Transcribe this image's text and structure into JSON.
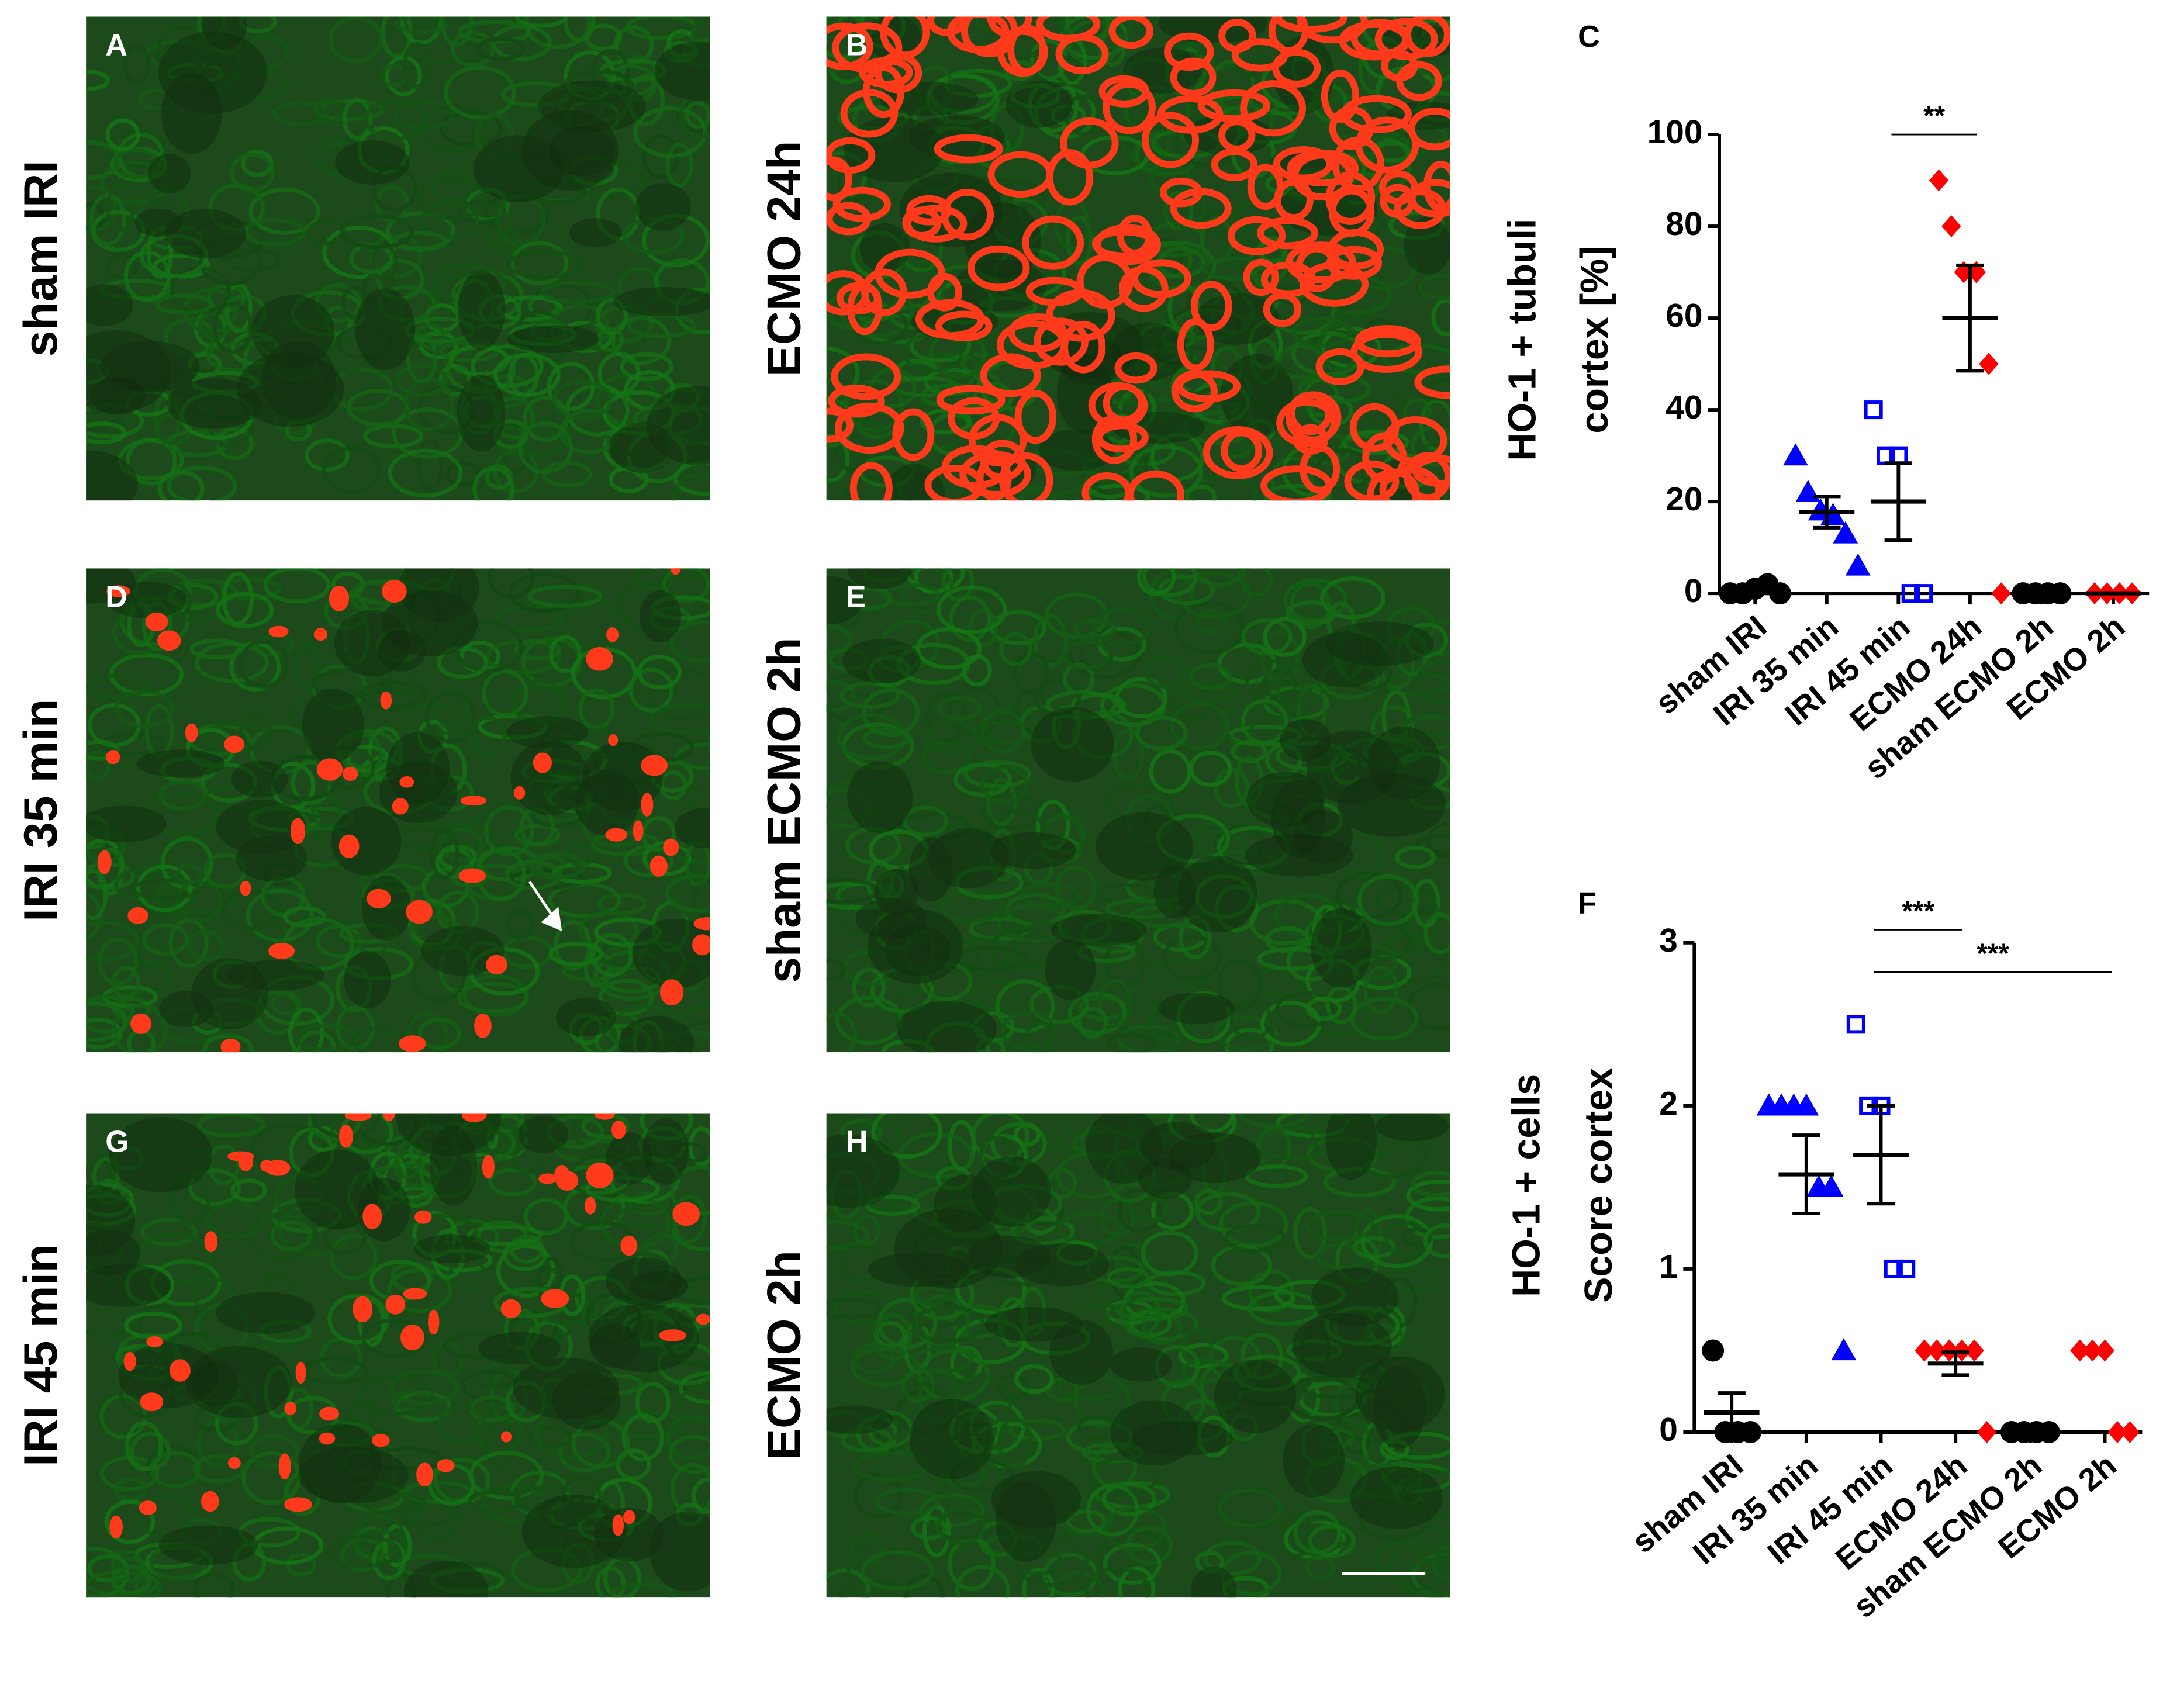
{
  "panels": [
    {
      "letter": "A",
      "label": "sham IRI"
    },
    {
      "letter": "B",
      "label": "ECMO 24h"
    },
    {
      "letter": "D",
      "label": "IRI 35 min"
    },
    {
      "letter": "E",
      "label": "sham ECMO 2h"
    },
    {
      "letter": "G",
      "label": "IRI 45 min"
    },
    {
      "letter": "H",
      "label": "ECMO 2h"
    }
  ],
  "chart_data": [
    {
      "type": "scatter",
      "panel": "C",
      "ylabel": [
        "HO-1 + tubuli",
        "cortex [%]"
      ],
      "categories": [
        "sham IRI",
        "IRI 35 min",
        "IRI 45 min",
        "ECMO 24h",
        "sham ECMO 2h",
        "ECMO 2h"
      ],
      "colors": [
        "#000000",
        "#0000ff",
        "#0000ff",
        "#ff0000",
        "#000000",
        "#ff0000"
      ],
      "markers": [
        "circle",
        "triangle",
        "square-open",
        "diamond",
        "circle",
        "diamond"
      ],
      "points": [
        [
          0,
          0,
          1,
          2,
          0
        ],
        [
          30,
          22,
          18,
          17,
          13,
          6
        ],
        [
          40,
          30,
          30,
          0,
          0
        ],
        [
          90,
          80,
          70,
          70,
          50,
          0
        ],
        [
          0,
          0,
          0,
          0
        ],
        [
          0,
          0,
          0,
          0
        ]
      ],
      "mean": [
        0.6,
        17.7,
        20,
        60,
        0,
        0
      ],
      "error": [
        0.4,
        3.4,
        8.4,
        11.5,
        0,
        0
      ],
      "ylim": [
        0,
        100
      ],
      "yticks": [
        0,
        20,
        40,
        60,
        80,
        100
      ],
      "annotations": [
        {
          "text": "**",
          "between": [
            "IRI 45 min",
            "ECMO 24h"
          ],
          "y": 100
        }
      ]
    },
    {
      "type": "scatter",
      "panel": "F",
      "ylabel": [
        "HO-1 + cells",
        "Score cortex"
      ],
      "categories": [
        "sham IRI",
        "IRI 35 min",
        "IRI 45 min",
        "ECMO 24h",
        "sham ECMO 2h",
        "ECMO 2h"
      ],
      "colors": [
        "#000000",
        "#0000ff",
        "#0000ff",
        "#ff0000",
        "#000000",
        "#ff0000"
      ],
      "markers": [
        "circle",
        "triangle",
        "square-open",
        "diamond",
        "circle",
        "diamond"
      ],
      "points": [
        [
          0.5,
          0,
          0,
          0
        ],
        [
          2,
          2,
          2,
          2,
          1.5,
          1.5,
          0.5
        ],
        [
          2.5,
          2,
          2,
          1,
          1
        ],
        [
          0.5,
          0.5,
          0.5,
          0.5,
          0.5,
          0
        ],
        [
          0,
          0,
          0,
          0
        ],
        [
          0.5,
          0.5,
          0.5,
          0,
          0
        ]
      ],
      "mean": [
        0.12,
        1.58,
        1.7,
        0.42,
        0,
        null
      ],
      "error": [
        0.12,
        0.24,
        0.3,
        0.07,
        0,
        null
      ],
      "ylim": [
        0,
        3
      ],
      "yticks": [
        0,
        1,
        2,
        3
      ],
      "annotations": [
        {
          "text": "***",
          "between": [
            "IRI 45 min",
            "ECMO 24h"
          ],
          "y": 3.08
        },
        {
          "text": "***",
          "between": [
            "IRI 45 min",
            "ECMO 2h"
          ],
          "y": 2.82
        }
      ]
    }
  ]
}
